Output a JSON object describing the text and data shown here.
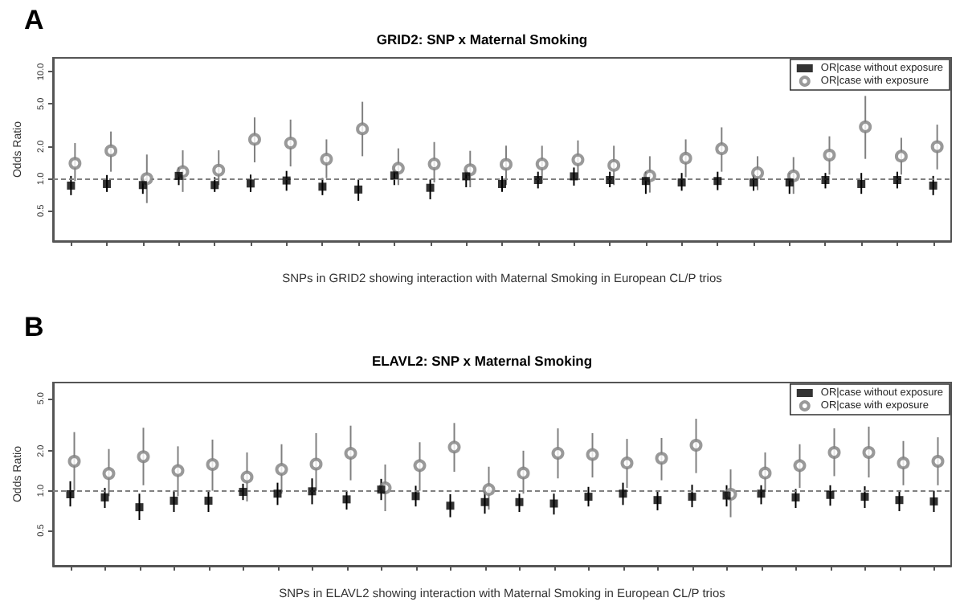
{
  "chart_data": [
    {
      "type": "scatter",
      "title": "GRID2: SNP x Maternal Smoking",
      "xlabel": "SNPs in GRID2 showing interaction with Maternal Smoking in European CL/P trios",
      "ylabel": "Odds Ratio",
      "annotations": [
        "A"
      ],
      "categories": [
        null,
        null,
        null,
        null,
        null,
        null,
        null,
        null,
        null,
        null,
        null,
        null,
        null,
        null,
        null,
        null,
        null,
        null,
        null,
        null,
        null,
        null,
        null,
        null,
        null
      ],
      "series": [
        {
          "name": "OR|case without exposure",
          "color": "#000000",
          "marker": "square",
          "values": [
            0.86,
            0.89,
            0.87,
            1.06,
            0.87,
            0.9,
            0.96,
            0.84,
            0.79,
            1.07,
            0.82,
            1.05,
            0.89,
            0.97,
            1.05,
            0.97,
            0.95,
            0.92,
            0.95,
            0.92,
            0.92,
            0.97,
            0.89,
            0.97,
            0.86
          ],
          "errors": [
            [
              0.7,
              1.06
            ],
            [
              0.75,
              1.08
            ],
            [
              0.72,
              1.0
            ],
            [
              0.87,
              1.27
            ],
            [
              0.75,
              1.03
            ],
            [
              0.75,
              1.09
            ],
            [
              0.77,
              1.18
            ],
            [
              0.7,
              1.01
            ],
            [
              0.62,
              0.98
            ],
            [
              0.87,
              1.3
            ],
            [
              0.64,
              0.98
            ],
            [
              0.83,
              1.22
            ],
            [
              0.75,
              1.06
            ],
            [
              0.81,
              1.16
            ],
            [
              0.86,
              1.27
            ],
            [
              0.83,
              1.16
            ],
            [
              0.72,
              1.16
            ],
            [
              0.77,
              1.13
            ],
            [
              0.78,
              1.16
            ],
            [
              0.77,
              1.09
            ],
            [
              0.72,
              1.13
            ],
            [
              0.81,
              1.13
            ],
            [
              0.72,
              1.13
            ],
            [
              0.81,
              1.16
            ],
            [
              0.7,
              1.06
            ]
          ]
        },
        {
          "name": "OR|case with exposure",
          "color": "#808080",
          "marker": "circle",
          "values": [
            1.39,
            1.82,
            1.0,
            1.16,
            1.2,
            2.33,
            2.15,
            1.52,
            2.92,
            1.25,
            1.37,
            1.21,
            1.36,
            1.37,
            1.5,
            1.33,
            1.06,
            1.55,
            1.9,
            1.13,
            1.06,
            1.66,
            3.05,
            1.62,
            1.99
          ],
          "errors": [
            [
              0.95,
              2.15
            ],
            [
              1.16,
              2.76
            ],
            [
              0.59,
              1.68
            ],
            [
              0.75,
              1.84
            ],
            [
              0.87,
              1.84
            ],
            [
              1.42,
              3.74
            ],
            [
              1.3,
              3.57
            ],
            [
              1.01,
              2.33
            ],
            [
              1.62,
              5.24
            ],
            [
              0.87,
              1.92
            ],
            [
              0.92,
              2.2
            ],
            [
              0.83,
              1.82
            ],
            [
              0.87,
              2.03
            ],
            [
              0.9,
              2.03
            ],
            [
              0.98,
              2.28
            ],
            [
              0.87,
              2.03
            ],
            [
              0.74,
              1.62
            ],
            [
              1.03,
              2.33
            ],
            [
              1.16,
              3.02
            ],
            [
              0.78,
              1.62
            ],
            [
              0.72,
              1.59
            ],
            [
              1.09,
              2.49
            ],
            [
              1.53,
              5.94
            ],
            [
              1.09,
              2.41
            ],
            [
              1.22,
              3.2
            ]
          ]
        }
      ],
      "log": true,
      "ylim": [
        0.26,
        13.5
      ],
      "yticks": [
        {
          "value": 0.5,
          "label": "0.5"
        },
        {
          "value": 1,
          "label": "1.0"
        },
        {
          "value": 2,
          "label": "2.0"
        },
        {
          "value": 5,
          "label": "5.0"
        },
        {
          "value": 10,
          "label": "10.0"
        }
      ],
      "ref_lines": [
        {
          "axis": "y",
          "value": 1,
          "color": "#808080",
          "line_style": "dashed"
        }
      ],
      "legend": "top right",
      "grid": false
    },
    {
      "type": "scatter",
      "title": "ELAVL2: SNP x Maternal Smoking",
      "xlabel": "SNPs in ELAVL2 showing interaction with Maternal Smoking in European CL/P trios",
      "ylabel": "Odds Ratio",
      "annotations": [
        "B"
      ],
      "categories": [
        null,
        null,
        null,
        null,
        null,
        null,
        null,
        null,
        null,
        null,
        null,
        null,
        null,
        null,
        null,
        null,
        null,
        null,
        null,
        null,
        null,
        null,
        null,
        null,
        null,
        null
      ],
      "series": [
        {
          "name": "OR|case without exposure",
          "color": "#000000",
          "marker": "square",
          "values": [
            0.94,
            0.89,
            0.75,
            0.84,
            0.84,
            0.98,
            0.95,
            0.99,
            0.86,
            1.02,
            0.91,
            0.77,
            0.82,
            0.82,
            0.8,
            0.9,
            0.95,
            0.85,
            0.9,
            0.92,
            0.95,
            0.89,
            0.93,
            0.9,
            0.85,
            0.83
          ],
          "errors": [
            [
              0.76,
              1.18
            ],
            [
              0.74,
              1.05
            ],
            [
              0.6,
              0.95
            ],
            [
              0.69,
              1.0
            ],
            [
              0.69,
              1.0
            ],
            [
              0.85,
              1.13
            ],
            [
              0.78,
              1.15
            ],
            [
              0.79,
              1.24
            ],
            [
              0.72,
              1.0
            ],
            [
              0.85,
              1.23
            ],
            [
              0.76,
              1.09
            ],
            [
              0.63,
              0.94
            ],
            [
              0.67,
              1.0
            ],
            [
              0.69,
              0.95
            ],
            [
              0.66,
              0.95
            ],
            [
              0.76,
              1.07
            ],
            [
              0.78,
              1.15
            ],
            [
              0.71,
              0.99
            ],
            [
              0.75,
              1.11
            ],
            [
              0.76,
              1.1
            ],
            [
              0.79,
              1.1
            ],
            [
              0.74,
              1.03
            ],
            [
              0.77,
              1.1
            ],
            [
              0.74,
              1.08
            ],
            [
              0.7,
              1.0
            ],
            [
              0.69,
              1.0
            ]
          ]
        },
        {
          "name": "OR|case with exposure",
          "color": "#808080",
          "marker": "circle",
          "values": [
            1.67,
            1.35,
            1.81,
            1.42,
            1.58,
            1.27,
            1.45,
            1.59,
            1.92,
            1.05,
            1.55,
            2.14,
            1.02,
            1.36,
            1.92,
            1.88,
            1.62,
            1.76,
            2.21,
            0.94,
            1.36,
            1.55,
            1.95,
            1.95,
            1.62,
            1.67
          ],
          "errors": [
            [
              1.0,
              2.78
            ],
            [
              0.91,
              2.07
            ],
            [
              1.1,
              3.0
            ],
            [
              0.91,
              2.17
            ],
            [
              1.0,
              2.44
            ],
            [
              0.83,
              1.95
            ],
            [
              0.95,
              2.25
            ],
            [
              1.0,
              2.73
            ],
            [
              1.2,
              3.11
            ],
            [
              0.7,
              1.58
            ],
            [
              1.0,
              2.33
            ],
            [
              1.39,
              3.26
            ],
            [
              0.72,
              1.52
            ],
            [
              0.95,
              2.01
            ],
            [
              1.24,
              2.97
            ],
            [
              1.26,
              2.73
            ],
            [
              1.05,
              2.47
            ],
            [
              1.2,
              2.51
            ],
            [
              1.36,
              3.51
            ],
            [
              0.63,
              1.45
            ],
            [
              0.98,
              1.95
            ],
            [
              1.05,
              2.25
            ],
            [
              1.29,
              2.97
            ],
            [
              1.26,
              3.06
            ],
            [
              1.1,
              2.38
            ],
            [
              1.1,
              2.54
            ]
          ]
        }
      ],
      "log": true,
      "ylim": [
        0.27,
        6.6
      ],
      "yticks": [
        {
          "value": 0.5,
          "label": "0.5"
        },
        {
          "value": 1,
          "label": "1.0"
        },
        {
          "value": 2,
          "label": "2.0"
        },
        {
          "value": 5,
          "label": "5.0"
        }
      ],
      "ref_lines": [
        {
          "axis": "y",
          "value": 1,
          "color": "#808080",
          "line_style": "dashed"
        }
      ],
      "legend": "top right",
      "grid": false
    }
  ]
}
